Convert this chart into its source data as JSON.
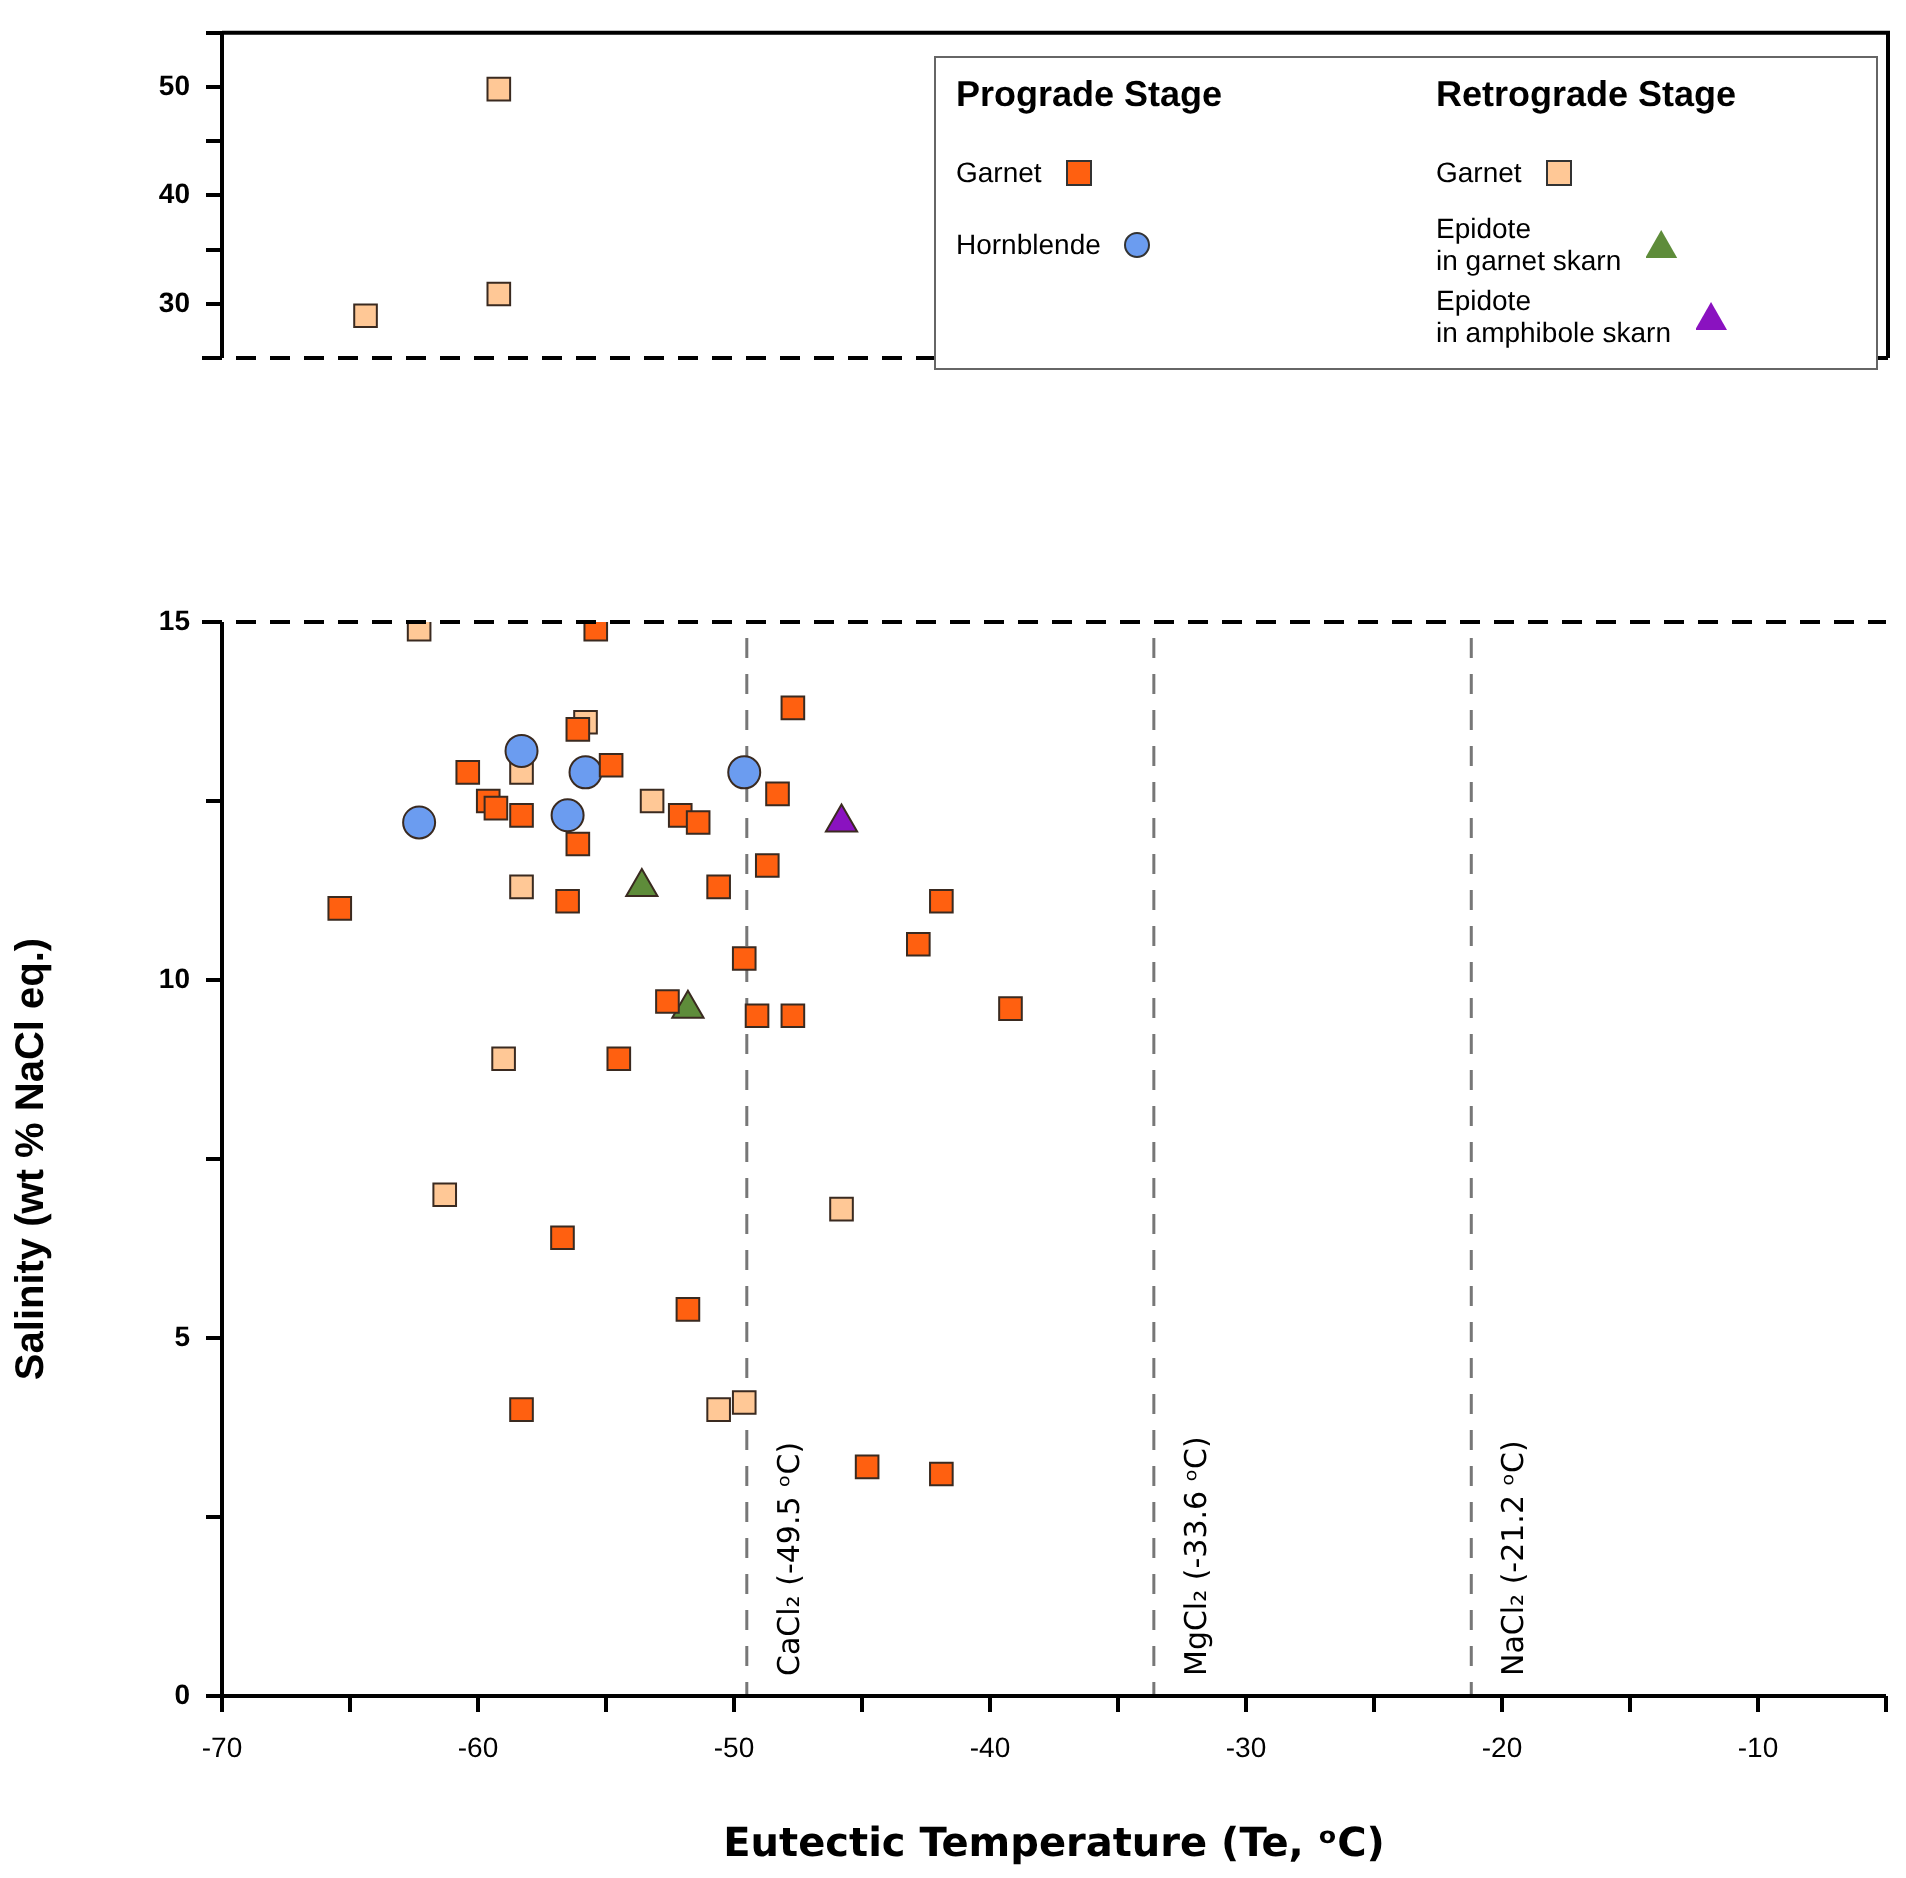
{
  "chart_data": [
    {
      "type": "scatter",
      "xlim": [
        -70,
        -5
      ],
      "ylim": [
        25,
        55
      ],
      "yticks": [
        {
          "value": 25,
          "label": null
        },
        30,
        {
          "value": 35,
          "label": null
        },
        40,
        {
          "value": 45,
          "label": null
        },
        50,
        {
          "value": 55,
          "label": null
        }
      ],
      "tick_labels": "y",
      "series": [
        {
          "color": "#ffc896",
          "marker": "square",
          "x": [
            -59.2,
            -59.2,
            -64.4
          ],
          "values": [
            49.8,
            30.9,
            28.9
          ]
        }
      ]
    },
    {
      "type": "scatter",
      "xlabel": "Eutectic Temperature (Te, ᵒC)",
      "ylabel": "Salinity (wt % NaCl eq.)",
      "xlim": [
        -70,
        -5
      ],
      "ylim": [
        0,
        15
      ],
      "legend": "top right",
      "annotations": [
        "Prograde Stage",
        "Retrograde Stage"
      ],
      "xticks": [
        -70,
        {
          "value": -65,
          "label": null
        },
        -60,
        {
          "value": -55,
          "label": null
        },
        -50,
        {
          "value": -45,
          "label": null
        },
        -40,
        {
          "value": -35,
          "label": null
        },
        -30,
        {
          "value": -25,
          "label": null
        },
        -20,
        {
          "value": -15,
          "label": null
        },
        -10,
        {
          "value": -5,
          "label": null
        }
      ],
      "yticks": [
        0,
        {
          "value": 2.5,
          "label": null
        },
        5,
        {
          "value": 7.5,
          "label": null
        },
        10,
        {
          "value": 12.5,
          "label": null
        },
        15
      ],
      "ref_lines": [
        {
          "axis": "x",
          "value": -49.5,
          "label": "CaCl₂ (-49.5 ᵒC)",
          "color": "#777777",
          "line_style": "dashed"
        },
        {
          "axis": "x",
          "value": -33.6,
          "label": "MgCl₂ (-33.6 ᵒC)",
          "color": "#777777",
          "line_style": "dashed"
        },
        {
          "axis": "x",
          "value": -21.2,
          "label": "NaCl₂ (-21.2 ᵒC)",
          "color": "#777777",
          "line_style": "dashed"
        }
      ],
      "series": [
        {
          "name": "Garnet",
          "color": "#ff6010",
          "marker": "square",
          "x": [
            -55.4,
            -47.7,
            -56.1,
            -60.4,
            -54.8,
            -59.6,
            -59.3,
            -58.3,
            -52.1,
            -51.4,
            -48.3,
            -56.1,
            -48.7,
            -50.6,
            -56.5,
            -65.4,
            -41.9,
            -42.8,
            -49.6,
            -52.6,
            -49.1,
            -47.7,
            -39.2,
            -54.5,
            -56.7,
            -51.8,
            -58.3,
            -44.8,
            -41.9
          ],
          "values": [
            14.9,
            13.8,
            13.5,
            12.9,
            13.0,
            12.5,
            12.4,
            12.3,
            12.3,
            12.2,
            12.6,
            11.9,
            11.6,
            11.3,
            11.1,
            11.0,
            11.1,
            10.5,
            10.3,
            9.7,
            9.5,
            9.5,
            9.6,
            8.9,
            6.4,
            5.4,
            4.0,
            3.2,
            3.1
          ]
        },
        {
          "name": "Hornblende",
          "color": "#6b9cf0",
          "marker": "circle",
          "x": [
            -58.3,
            -55.8,
            -49.6,
            -62.3,
            -56.5
          ],
          "values": [
            13.2,
            12.9,
            12.9,
            12.2,
            12.3
          ]
        },
        {
          "name": "Garnet",
          "color": "#ffc896",
          "marker": "square",
          "x": [
            -62.3,
            -55.8,
            -58.3,
            -53.2,
            -58.3,
            -59.0,
            -61.3,
            -45.8,
            -50.6,
            -49.6
          ],
          "values": [
            14.9,
            13.6,
            12.9,
            12.5,
            11.3,
            8.9,
            7.0,
            6.8,
            4.0,
            4.1
          ]
        },
        {
          "name": "Epidote\nin garnet skarn",
          "color": "#5e8c3a",
          "marker": "triangle",
          "x": [
            -53.6,
            -51.8
          ],
          "values": [
            11.3,
            9.6
          ]
        },
        {
          "name": "Epidote\nin amphibole skarn",
          "color": "#8a12c0",
          "marker": "triangle",
          "x": [
            -45.8
          ],
          "values": [
            12.2
          ]
        }
      ]
    }
  ]
}
